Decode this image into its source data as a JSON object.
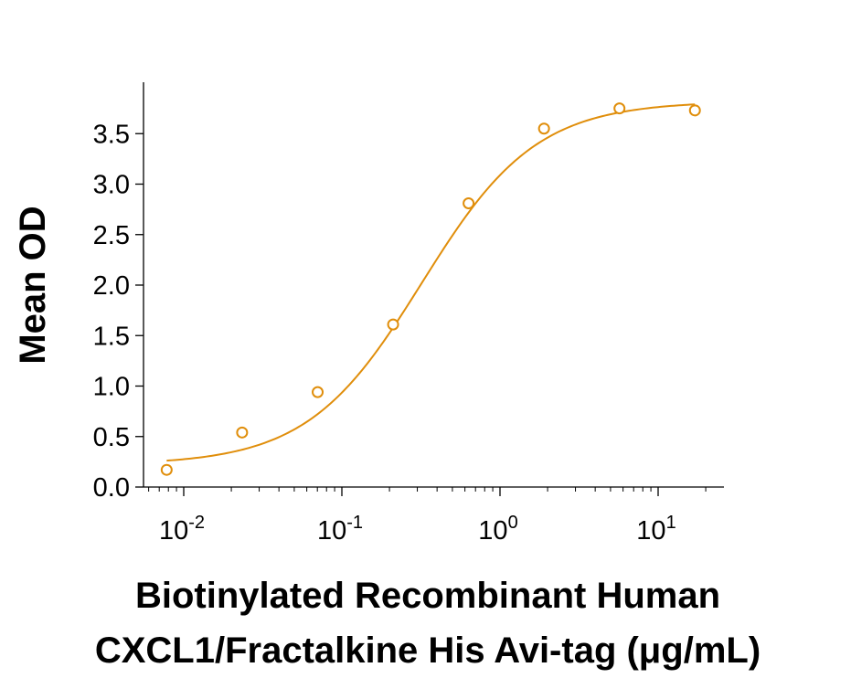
{
  "chart_data": {
    "type": "scatter",
    "title": "",
    "ylabel": "Mean OD",
    "xlabel_lines": [
      "Biotinylated Recombinant Human",
      "CXCL1/Fractalkine His Avi-tag (μg/mL)"
    ],
    "x_scale": "log",
    "xlim": [
      0.005,
      25
    ],
    "ylim": [
      0,
      4.0
    ],
    "x_ticks": [
      {
        "base": "10",
        "exp": "-2",
        "value": 0.01
      },
      {
        "base": "10",
        "exp": "-1",
        "value": 0.1
      },
      {
        "base": "10",
        "exp": "0",
        "value": 1
      },
      {
        "base": "10",
        "exp": "1",
        "value": 10
      }
    ],
    "y_ticks": [
      {
        "label": "0.0",
        "value": 0.0
      },
      {
        "label": "0.5",
        "value": 0.5
      },
      {
        "label": "1.0",
        "value": 1.0
      },
      {
        "label": "1.5",
        "value": 1.5
      },
      {
        "label": "2.0",
        "value": 2.0
      },
      {
        "label": "2.5",
        "value": 2.5
      },
      {
        "label": "3.0",
        "value": 3.0
      },
      {
        "label": "3.5",
        "value": 3.5
      }
    ],
    "grid": false,
    "color": "#E08E0B",
    "series": [
      {
        "x": [
          0.0078,
          0.0234,
          0.0703,
          0.2109,
          0.6328,
          1.8984,
          5.6953,
          17.0859
        ],
        "y": [
          0.17,
          0.54,
          0.94,
          1.61,
          2.81,
          3.55,
          3.75,
          3.73
        ]
      }
    ],
    "fit": {
      "type": "4PL",
      "bottom": 0.22,
      "top": 3.82,
      "ec50": 0.32,
      "hill": 1.2
    }
  }
}
